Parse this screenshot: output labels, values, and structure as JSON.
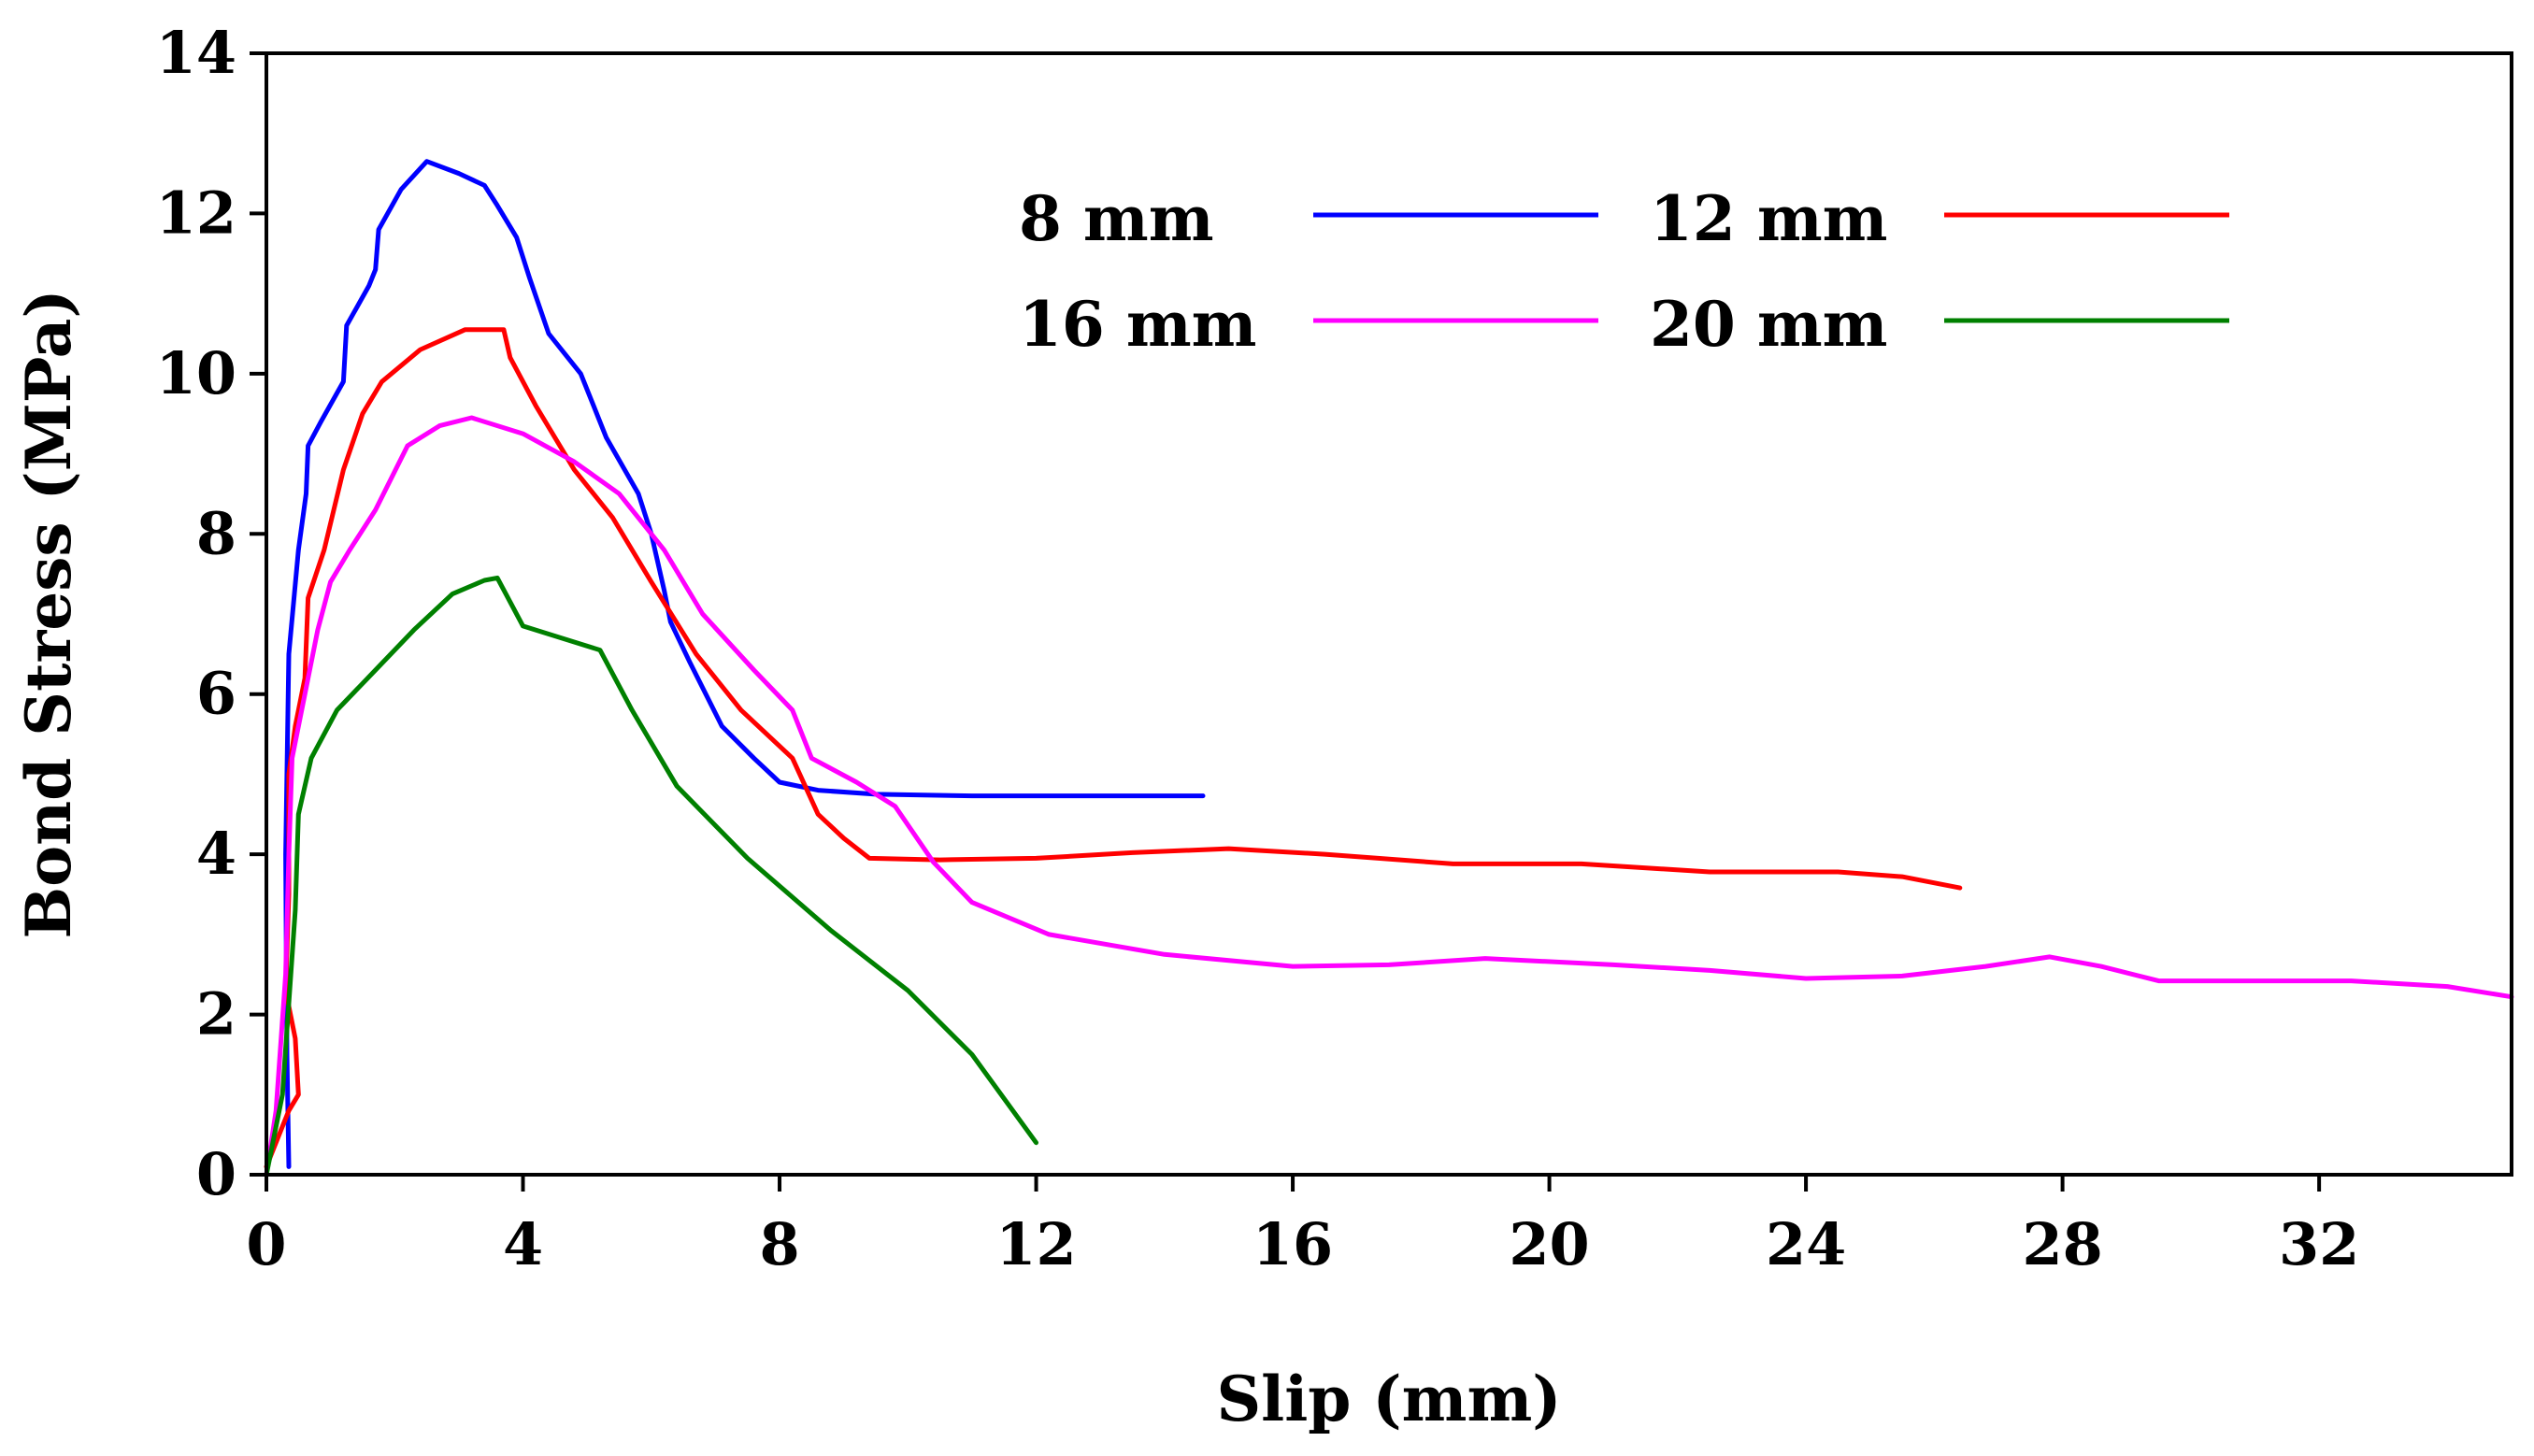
{
  "chart_data": {
    "type": "line",
    "title": "",
    "xlabel": "Slip (mm)",
    "ylabel": "Bond Stress (MPa)",
    "xlim": [
      0,
      35
    ],
    "ylim": [
      0,
      14
    ],
    "xticks": [
      0,
      4,
      8,
      12,
      16,
      20,
      24,
      28,
      32
    ],
    "yticks": [
      0,
      2,
      4,
      6,
      8,
      10,
      12,
      14
    ],
    "grid": false,
    "legend_position": "top-center",
    "series": [
      {
        "name": "8 mm",
        "color": "#0000ff",
        "points": [
          [
            0.35,
            0.1
          ],
          [
            0.32,
            1.5
          ],
          [
            0.3,
            4.0
          ],
          [
            0.35,
            6.5
          ],
          [
            0.5,
            7.8
          ],
          [
            0.62,
            8.5
          ],
          [
            0.65,
            9.1
          ],
          [
            0.85,
            9.4
          ],
          [
            1.2,
            9.9
          ],
          [
            1.25,
            10.6
          ],
          [
            1.6,
            11.1
          ],
          [
            1.7,
            11.3
          ],
          [
            1.75,
            11.8
          ],
          [
            2.1,
            12.3
          ],
          [
            2.5,
            12.65
          ],
          [
            3.0,
            12.5
          ],
          [
            3.4,
            12.35
          ],
          [
            3.6,
            12.1
          ],
          [
            3.9,
            11.7
          ],
          [
            4.1,
            11.2
          ],
          [
            4.4,
            10.5
          ],
          [
            4.9,
            10.0
          ],
          [
            5.1,
            9.6
          ],
          [
            5.3,
            9.2
          ],
          [
            5.8,
            8.5
          ],
          [
            6.0,
            8.0
          ],
          [
            6.2,
            7.3
          ],
          [
            6.3,
            6.9
          ],
          [
            6.6,
            6.4
          ],
          [
            7.1,
            5.6
          ],
          [
            7.6,
            5.2
          ],
          [
            8.0,
            4.9
          ],
          [
            8.6,
            4.8
          ],
          [
            9.5,
            4.75
          ],
          [
            11.0,
            4.73
          ],
          [
            13.0,
            4.73
          ],
          [
            14.6,
            4.73
          ]
        ]
      },
      {
        "name": "12 mm",
        "color": "#ff0000",
        "points": [
          [
            0.0,
            0.1
          ],
          [
            0.2,
            0.5
          ],
          [
            0.35,
            0.8
          ],
          [
            0.5,
            1.0
          ],
          [
            0.45,
            1.7
          ],
          [
            0.3,
            2.3
          ],
          [
            0.35,
            3.5
          ],
          [
            0.35,
            5.0
          ],
          [
            0.45,
            5.6
          ],
          [
            0.6,
            6.2
          ],
          [
            0.65,
            7.2
          ],
          [
            0.9,
            7.8
          ],
          [
            1.2,
            8.8
          ],
          [
            1.5,
            9.5
          ],
          [
            1.8,
            9.9
          ],
          [
            2.4,
            10.3
          ],
          [
            3.1,
            10.55
          ],
          [
            3.7,
            10.55
          ],
          [
            3.8,
            10.2
          ],
          [
            4.2,
            9.6
          ],
          [
            4.8,
            8.8
          ],
          [
            5.4,
            8.2
          ],
          [
            6.0,
            7.4
          ],
          [
            6.7,
            6.5
          ],
          [
            7.4,
            5.8
          ],
          [
            8.2,
            5.2
          ],
          [
            8.6,
            4.5
          ],
          [
            9.0,
            4.2
          ],
          [
            9.4,
            3.95
          ],
          [
            10.5,
            3.93
          ],
          [
            12.0,
            3.95
          ],
          [
            13.5,
            4.02
          ],
          [
            15.0,
            4.07
          ],
          [
            16.5,
            4.0
          ],
          [
            18.5,
            3.88
          ],
          [
            20.5,
            3.88
          ],
          [
            22.5,
            3.78
          ],
          [
            24.5,
            3.78
          ],
          [
            25.5,
            3.72
          ],
          [
            26.4,
            3.58
          ]
        ]
      },
      {
        "name": "16 mm",
        "color": "#ff00ff",
        "points": [
          [
            0.0,
            0.0
          ],
          [
            0.15,
            0.8
          ],
          [
            0.3,
            2.5
          ],
          [
            0.35,
            4.0
          ],
          [
            0.4,
            5.2
          ],
          [
            0.6,
            6.0
          ],
          [
            0.8,
            6.8
          ],
          [
            1.0,
            7.4
          ],
          [
            1.3,
            7.8
          ],
          [
            1.7,
            8.3
          ],
          [
            2.2,
            9.1
          ],
          [
            2.7,
            9.35
          ],
          [
            3.2,
            9.45
          ],
          [
            4.0,
            9.25
          ],
          [
            4.8,
            8.9
          ],
          [
            5.5,
            8.5
          ],
          [
            6.2,
            7.8
          ],
          [
            6.8,
            7.0
          ],
          [
            7.6,
            6.3
          ],
          [
            8.2,
            5.8
          ],
          [
            8.5,
            5.2
          ],
          [
            9.2,
            4.9
          ],
          [
            9.8,
            4.6
          ],
          [
            10.4,
            3.9
          ],
          [
            11.0,
            3.4
          ],
          [
            12.2,
            3.0
          ],
          [
            14.0,
            2.75
          ],
          [
            16.0,
            2.6
          ],
          [
            17.5,
            2.62
          ],
          [
            19.0,
            2.7
          ],
          [
            21.0,
            2.62
          ],
          [
            22.5,
            2.55
          ],
          [
            24.0,
            2.45
          ],
          [
            25.5,
            2.48
          ],
          [
            26.8,
            2.6
          ],
          [
            27.8,
            2.72
          ],
          [
            28.6,
            2.6
          ],
          [
            29.5,
            2.42
          ],
          [
            30.5,
            2.42
          ],
          [
            32.5,
            2.42
          ],
          [
            34.0,
            2.35
          ],
          [
            35.0,
            2.22
          ]
        ]
      },
      {
        "name": "20 mm",
        "color": "#008000",
        "points": [
          [
            0.0,
            0.0
          ],
          [
            0.25,
            1.0
          ],
          [
            0.45,
            3.3
          ],
          [
            0.5,
            4.5
          ],
          [
            0.7,
            5.2
          ],
          [
            1.1,
            5.8
          ],
          [
            1.7,
            6.3
          ],
          [
            2.3,
            6.8
          ],
          [
            2.9,
            7.25
          ],
          [
            3.4,
            7.42
          ],
          [
            3.6,
            7.45
          ],
          [
            4.0,
            6.85
          ],
          [
            4.6,
            6.7
          ],
          [
            5.2,
            6.55
          ],
          [
            5.7,
            5.8
          ],
          [
            6.4,
            4.85
          ],
          [
            7.5,
            3.95
          ],
          [
            8.8,
            3.05
          ],
          [
            10.0,
            2.3
          ],
          [
            11.0,
            1.5
          ],
          [
            12.0,
            0.4
          ]
        ]
      }
    ]
  }
}
